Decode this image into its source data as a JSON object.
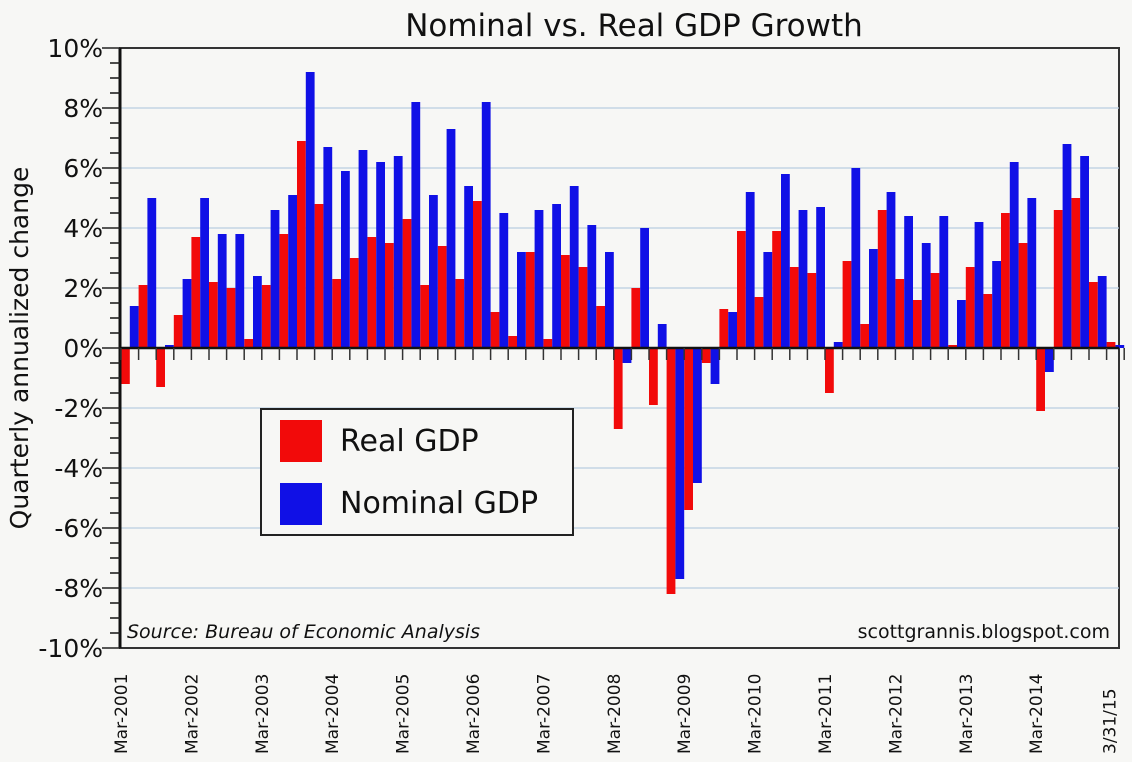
{
  "chart_data": {
    "type": "bar",
    "title": "Nominal vs. Real GDP Growth",
    "xlabel": "",
    "ylabel": "Quarterly annualized change",
    "ylim": [
      -10,
      10
    ],
    "yticks": [
      -10,
      -8,
      -6,
      -4,
      -2,
      0,
      2,
      4,
      6,
      8,
      10
    ],
    "ytick_labels": [
      "-10%",
      "-8%",
      "-6%",
      "-4%",
      "-2%",
      "0%",
      "2%",
      "4%",
      "6%",
      "8%",
      "10%"
    ],
    "grid": true,
    "legend_position": "center-left",
    "x_tick_labels": [
      {
        "quarter_index": 0,
        "label": "Mar-2001"
      },
      {
        "quarter_index": 4,
        "label": "Mar-2002"
      },
      {
        "quarter_index": 8,
        "label": "Mar-2003"
      },
      {
        "quarter_index": 12,
        "label": "Mar-2004"
      },
      {
        "quarter_index": 16,
        "label": "Mar-2005"
      },
      {
        "quarter_index": 20,
        "label": "Mar-2006"
      },
      {
        "quarter_index": 24,
        "label": "Mar-2007"
      },
      {
        "quarter_index": 28,
        "label": "Mar-2008"
      },
      {
        "quarter_index": 32,
        "label": "Mar-2009"
      },
      {
        "quarter_index": 36,
        "label": "Mar-2010"
      },
      {
        "quarter_index": 40,
        "label": "Mar-2011"
      },
      {
        "quarter_index": 44,
        "label": "Mar-2012"
      },
      {
        "quarter_index": 48,
        "label": "Mar-2013"
      },
      {
        "quarter_index": 52,
        "label": "Mar-2014"
      },
      {
        "quarter_index": 56,
        "label": "3/31/15"
      }
    ],
    "categories": [
      "2001Q1",
      "2001Q2",
      "2001Q3",
      "2001Q4",
      "2002Q1",
      "2002Q2",
      "2002Q3",
      "2002Q4",
      "2003Q1",
      "2003Q2",
      "2003Q3",
      "2003Q4",
      "2004Q1",
      "2004Q2",
      "2004Q3",
      "2004Q4",
      "2005Q1",
      "2005Q2",
      "2005Q3",
      "2005Q4",
      "2006Q1",
      "2006Q2",
      "2006Q3",
      "2006Q4",
      "2007Q1",
      "2007Q2",
      "2007Q3",
      "2007Q4",
      "2008Q1",
      "2008Q2",
      "2008Q3",
      "2008Q4",
      "2009Q1",
      "2009Q2",
      "2009Q3",
      "2009Q4",
      "2010Q1",
      "2010Q2",
      "2010Q3",
      "2010Q4",
      "2011Q1",
      "2011Q2",
      "2011Q3",
      "2011Q4",
      "2012Q1",
      "2012Q2",
      "2012Q3",
      "2012Q4",
      "2013Q1",
      "2013Q2",
      "2013Q3",
      "2013Q4",
      "2014Q1",
      "2014Q2",
      "2014Q3",
      "2014Q4",
      "2015Q1"
    ],
    "series": [
      {
        "name": "Real GDP",
        "color": "#f20a0a",
        "values": [
          -1.2,
          2.1,
          -1.3,
          1.1,
          3.7,
          2.2,
          2.0,
          0.3,
          2.1,
          3.8,
          6.9,
          4.8,
          2.3,
          3.0,
          3.7,
          3.5,
          4.3,
          2.1,
          3.4,
          2.3,
          4.9,
          1.2,
          0.4,
          3.2,
          0.3,
          3.1,
          2.7,
          1.4,
          -2.7,
          2.0,
          -1.9,
          -8.2,
          -5.4,
          -0.5,
          1.3,
          3.9,
          1.7,
          3.9,
          2.7,
          2.5,
          -1.5,
          2.9,
          0.8,
          4.6,
          2.3,
          1.6,
          2.5,
          0.1,
          2.7,
          1.8,
          4.5,
          3.5,
          -2.1,
          4.6,
          5.0,
          2.2,
          0.2
        ]
      },
      {
        "name": "Nominal GDP",
        "color": "#1010e6",
        "values": [
          1.4,
          5.0,
          0.1,
          2.3,
          5.0,
          3.8,
          3.8,
          2.4,
          4.6,
          5.1,
          9.2,
          6.7,
          5.9,
          6.6,
          6.2,
          6.4,
          8.2,
          5.1,
          7.3,
          5.4,
          8.2,
          4.5,
          3.2,
          4.6,
          4.8,
          5.4,
          4.1,
          3.2,
          -0.5,
          4.0,
          0.8,
          -7.7,
          -4.5,
          -1.2,
          1.2,
          5.2,
          3.2,
          5.8,
          4.6,
          4.7,
          0.2,
          6.0,
          3.3,
          5.2,
          4.4,
          3.5,
          4.4,
          1.6,
          4.2,
          2.9,
          6.2,
          5.0,
          -0.8,
          6.8,
          6.4,
          2.4,
          0.1
        ]
      }
    ],
    "annotations": {
      "source": "Source: Bureau of Economic Analysis",
      "credit": "scottgrannis.blogspot.com"
    }
  }
}
